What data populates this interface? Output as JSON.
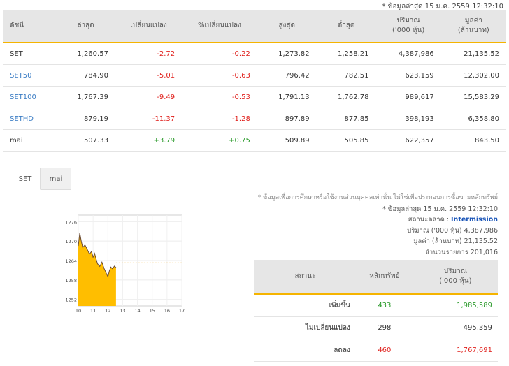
{
  "top_note": "* ข้อมูลล่าสุด 15 ม.ค. 2559 12:32:10",
  "index_table": {
    "headers": [
      "ดัชนี",
      "ล่าสุด",
      "เปลี่ยนแปลง",
      "%เปลี่ยนแปลง",
      "สูงสุด",
      "ต่ำสุด",
      "ปริมาณ\n('000 หุ้น)",
      "มูลค่า\n(ล้านบาท)"
    ],
    "rows": [
      {
        "name": "SET",
        "last": "1,260.57",
        "change": "-2.72",
        "pct": "-0.22",
        "high": "1,273.82",
        "low": "1,258.21",
        "volume": "4,387,986",
        "value": "21,135.52"
      },
      {
        "name": "SET50",
        "last": "784.90",
        "change": "-5.01",
        "pct": "-0.63",
        "high": "796.42",
        "low": "782.51",
        "volume": "623,159",
        "value": "12,302.00"
      },
      {
        "name": "SET100",
        "last": "1,767.39",
        "change": "-9.49",
        "pct": "-0.53",
        "high": "1,791.13",
        "low": "1,762.78",
        "volume": "989,617",
        "value": "15,583.29"
      },
      {
        "name": "SETHD",
        "last": "879.19",
        "change": "-11.37",
        "pct": "-1.28",
        "high": "897.89",
        "low": "877.85",
        "volume": "398,193",
        "value": "6,358.80"
      },
      {
        "name": "mai",
        "last": "507.33",
        "change": "+3.79",
        "pct": "+0.75",
        "high": "509.89",
        "low": "505.85",
        "volume": "622,357",
        "value": "843.50"
      }
    ]
  },
  "tabs": [
    "SET",
    "mai"
  ],
  "chart_data": {
    "type": "area",
    "y_ticks": [
      "1276",
      "1270",
      "1264",
      "1258",
      "1252"
    ],
    "x_ticks": [
      "10",
      "11",
      "12",
      "13",
      "14",
      "15",
      "16",
      "17"
    ],
    "ylim": [
      1250,
      1278
    ],
    "xlim": [
      10,
      17
    ],
    "reference": 1263.29,
    "x": [
      10.0,
      10.1,
      10.2,
      10.3,
      10.45,
      10.6,
      10.75,
      10.9,
      11.0,
      11.1,
      11.2,
      11.3,
      11.45,
      11.6,
      11.75,
      11.9,
      12.0,
      12.1,
      12.2,
      12.3,
      12.45,
      12.55
    ],
    "y": [
      1268.5,
      1272.5,
      1270.0,
      1268.0,
      1268.8,
      1267.5,
      1266.0,
      1266.8,
      1265.0,
      1266.2,
      1264.5,
      1263.0,
      1262.2,
      1263.5,
      1261.5,
      1260.0,
      1259.0,
      1260.8,
      1262.0,
      1261.5,
      1262.3,
      1261.8
    ],
    "fill_color": "#ffbe00",
    "line_color": "#6a4a32"
  },
  "info": {
    "disclaimer": "* ข้อมูลเพื่อการศึกษาหรือใช้งานส่วนบุคคลเท่านั้น ไม่ใช่เพื่อประกอบการซื้อขายหลักทรัพย์",
    "updated": "* ข้อมูลล่าสุด 15 ม.ค. 2559 12:32:10",
    "status_label": "สถานะตลาด :",
    "status": "Intermission",
    "volume": "ปริมาณ ('000 หุ้น)  4,387,986",
    "value": "มูลค่า (ล้านบาท)  21,135.52",
    "trades": "จำนวนรายการ  201,016"
  },
  "breadth": {
    "headers": [
      "สถานะ",
      "หลักทรัพย์",
      "ปริมาณ\n('000 หุ้น)"
    ],
    "rows": [
      {
        "label": "เพิ่มขึ้น",
        "count": "433",
        "volume": "1,985,589",
        "tone": "pos"
      },
      {
        "label": "ไม่เปลี่ยนแปลง",
        "count": "298",
        "volume": "495,359",
        "tone": ""
      },
      {
        "label": "ลดลง",
        "count": "460",
        "volume": "1,767,691",
        "tone": "neg"
      }
    ]
  }
}
